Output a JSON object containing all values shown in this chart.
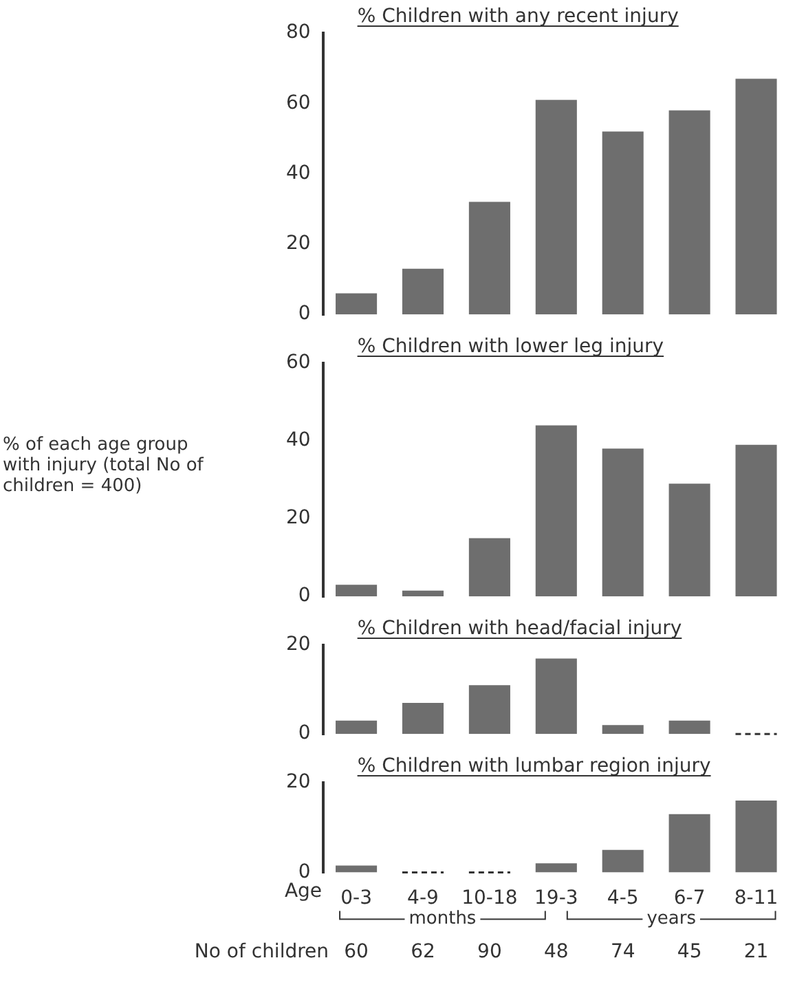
{
  "chart_data": [
    {
      "type": "bar",
      "title": "% Children with any recent injury",
      "categories": [
        null,
        null,
        null,
        null,
        null,
        null,
        null
      ],
      "values": [
        6,
        13,
        32,
        61,
        52,
        58,
        67
      ],
      "color": "#6e6e6e",
      "ylim": [
        0,
        80
      ],
      "yticks": [
        0,
        20,
        40,
        60,
        80
      ],
      "grid": false,
      "tick_labels": "y"
    },
    {
      "type": "bar",
      "title": "% Children with lower leg injury",
      "ylabel": "% of each age group with injury (total No of children = 400)",
      "categories": [
        null,
        null,
        null,
        null,
        null,
        null,
        null
      ],
      "values": [
        3,
        1.5,
        15,
        44,
        38,
        29,
        39
      ],
      "color": "#6e6e6e",
      "ylim": [
        0,
        60
      ],
      "yticks": [
        0,
        20,
        40,
        60
      ],
      "grid": false,
      "tick_labels": "y"
    },
    {
      "type": "bar",
      "title": "% Children with head/facial injury",
      "categories": [
        null,
        null,
        null,
        null,
        null,
        null,
        null
      ],
      "values": [
        3,
        7,
        11,
        17,
        2,
        3,
        0
      ],
      "color": "#6e6e6e",
      "ylim": [
        0,
        20
      ],
      "yticks": [
        0,
        20
      ],
      "grid": false,
      "tick_labels": "y"
    },
    {
      "type": "bar",
      "title": "% Children with lumbar region injury",
      "xlabel": "Age",
      "categories": [
        "0-3",
        "4-9",
        "10-18",
        "19-3",
        "4-5",
        "6-7",
        "8-11"
      ],
      "values": [
        1.5,
        0,
        0,
        2,
        5,
        13,
        16
      ],
      "color": "#6e6e6e",
      "ylim": [
        0,
        20
      ],
      "yticks": [
        0,
        20
      ],
      "grid": false,
      "annotations": [
        "months",
        "years",
        "No of children",
        "60",
        "62",
        "90",
        "48",
        "74",
        "45",
        "21"
      ]
    }
  ]
}
